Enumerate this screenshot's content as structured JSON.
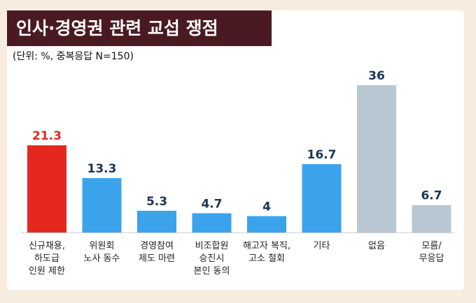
{
  "header": {
    "title": "인사·경영권 관련 교섭 쟁점",
    "subtitle": "(단위: %, 중복응답 N=150)"
  },
  "colors": {
    "highlight": "#e5281f",
    "primary": "#3ba3ec",
    "muted": "#b8c7d1",
    "title_bg": "#4a1a22",
    "value_dark": "#1b3655"
  },
  "chart_data": {
    "type": "bar",
    "title": "인사·경영권 관련 교섭 쟁점",
    "subtitle": "(단위: %, 중복응답 N=150)",
    "xlabel": "",
    "ylabel": "",
    "ylim": [
      0,
      36
    ],
    "grid": false,
    "categories": [
      [
        "신규채용,",
        "하도급",
        "인원 제한"
      ],
      [
        "위원회",
        "노사 동수"
      ],
      [
        "경영참여",
        "제도 마련"
      ],
      [
        "비조합원",
        "승진시",
        "본인 동의"
      ],
      [
        "해고자 복직,",
        "고소 철회"
      ],
      [
        "기타"
      ],
      [
        "없음"
      ],
      [
        "모름/",
        "무응답"
      ]
    ],
    "values": [
      21.3,
      13.3,
      5.3,
      4.7,
      4,
      16.7,
      36,
      6.7
    ],
    "value_labels": [
      "21.3",
      "13.3",
      "5.3",
      "4.7",
      "4",
      "16.7",
      "36",
      "6.7"
    ],
    "bar_colors": [
      "highlight",
      "primary",
      "primary",
      "primary",
      "primary",
      "primary",
      "muted",
      "muted"
    ]
  }
}
